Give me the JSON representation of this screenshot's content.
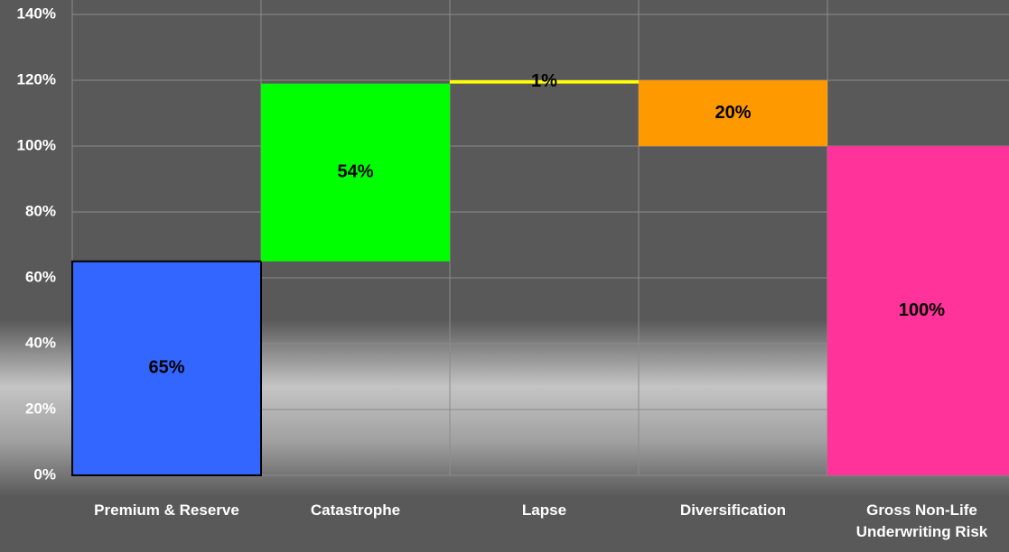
{
  "chart_data": {
    "type": "waterfall",
    "categories": [
      "Premium & Reserve",
      "Catastrophe",
      "Lapse",
      "Diversification",
      "Gross Non-Life Underwriting Risk"
    ],
    "values": [
      65,
      54,
      1,
      20,
      100
    ],
    "value_labels": [
      "65%",
      "54%",
      "1%",
      "20%",
      "100%"
    ],
    "measures": [
      "increase",
      "increase",
      "increase",
      "decrease",
      "total"
    ],
    "colors": [
      "#3366ff",
      "#00ff00",
      "#ffff00",
      "#ff9900",
      "#ff3399"
    ],
    "ylim": [
      0,
      140
    ],
    "yticks": [
      {
        "value": 0,
        "label": "0%"
      },
      {
        "value": 20,
        "label": "20%"
      },
      {
        "value": 40,
        "label": "40%"
      },
      {
        "value": 60,
        "label": "60%"
      },
      {
        "value": 80,
        "label": "80%"
      },
      {
        "value": 100,
        "label": "100%"
      },
      {
        "value": 120,
        "label": "120%"
      },
      {
        "value": 140,
        "label": "140%"
      }
    ],
    "grid": true
  }
}
